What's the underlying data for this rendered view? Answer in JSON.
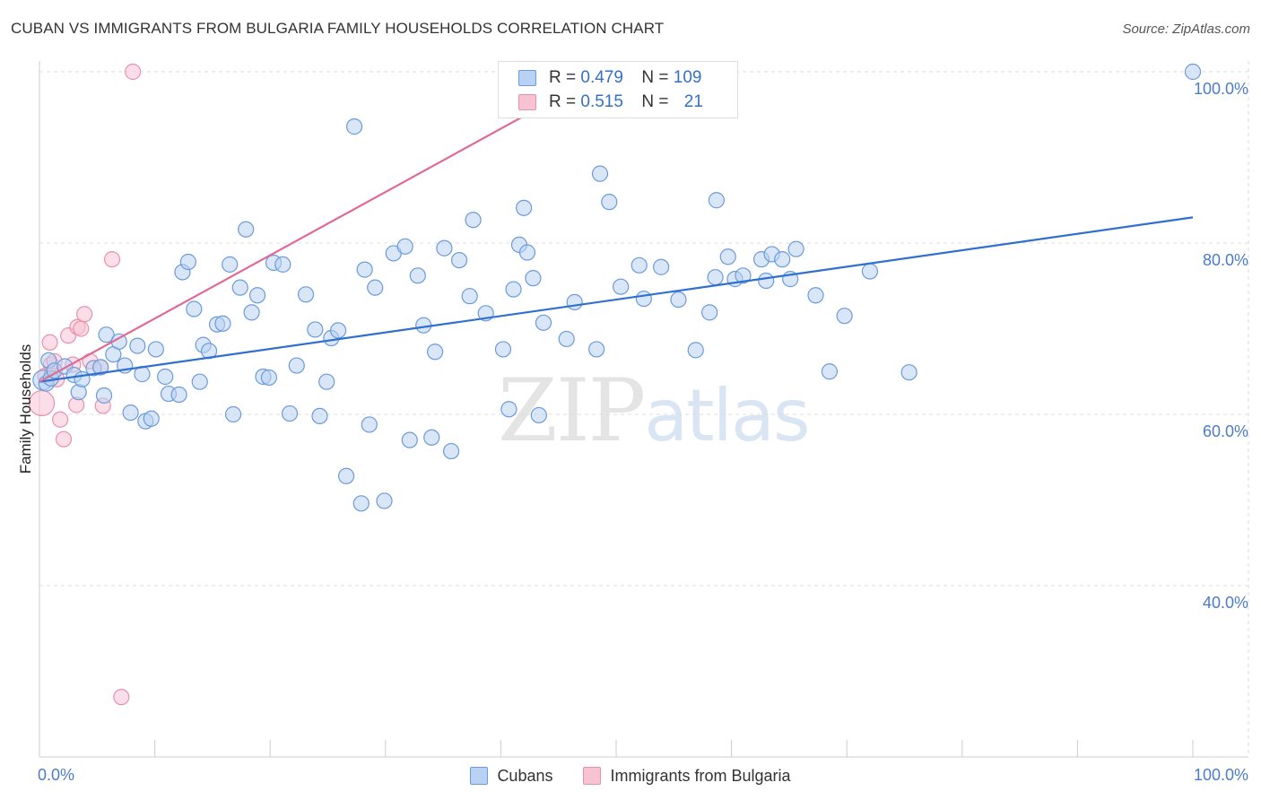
{
  "title": "CUBAN VS IMMIGRANTS FROM BULGARIA FAMILY HOUSEHOLDS CORRELATION CHART",
  "source": "Source: ZipAtlas.com",
  "watermark": {
    "zip": "ZIP",
    "atlas": "atlas"
  },
  "legend": {
    "r_label": "R =",
    "n_label": "N =",
    "rows": [
      {
        "r": "0.479",
        "n": "109"
      },
      {
        "r": "0.515",
        "n": "21"
      }
    ]
  },
  "colors": {
    "cuban_fill": "#b9d1f3",
    "cuban_stroke": "#6b9bd9",
    "cuban_line": "#2f6fd0",
    "bulgaria_fill": "#f7c3d3",
    "bulgaria_stroke": "#e891ad",
    "bulgaria_line": "#e06a94",
    "grid": "#dcdcdc",
    "axis": "#cccccc"
  },
  "chart_data": {
    "type": "scatter",
    "title": "CUBAN VS IMMIGRANTS FROM BULGARIA FAMILY HOUSEHOLDS CORRELATION CHART",
    "xlabel": "",
    "ylabel": "Family Households",
    "xlim": [
      0,
      100
    ],
    "ylim": [
      20,
      102
    ],
    "x_tick_labels": [
      "0.0%",
      "100.0%"
    ],
    "y_ticks": [
      40,
      60,
      80,
      100
    ],
    "y_tick_labels": [
      "40.0%",
      "60.0%",
      "80.0%",
      "100.0%"
    ],
    "legend": [
      "Cubans",
      "Immigrants from Bulgaria"
    ],
    "series": [
      {
        "name": "Cubans",
        "trend": {
          "x0": 0,
          "y0": 63.8,
          "x1": 100,
          "y1": 83.0
        },
        "points": [
          [
            0.3,
            64.0
          ],
          [
            0.6,
            63.6
          ],
          [
            0.8,
            66.3
          ],
          [
            1.0,
            64.2
          ],
          [
            1.3,
            65.1
          ],
          [
            2.2,
            65.6
          ],
          [
            3.0,
            64.6
          ],
          [
            3.4,
            62.6
          ],
          [
            3.7,
            64.1
          ],
          [
            4.7,
            65.4
          ],
          [
            5.3,
            65.5
          ],
          [
            5.6,
            62.2
          ],
          [
            5.8,
            69.3
          ],
          [
            6.4,
            67.0
          ],
          [
            6.9,
            68.5
          ],
          [
            7.4,
            65.7
          ],
          [
            7.9,
            60.2
          ],
          [
            8.5,
            68.0
          ],
          [
            8.9,
            64.7
          ],
          [
            9.2,
            59.2
          ],
          [
            9.7,
            59.5
          ],
          [
            10.1,
            67.6
          ],
          [
            10.9,
            64.4
          ],
          [
            11.2,
            62.4
          ],
          [
            12.1,
            62.3
          ],
          [
            12.4,
            76.6
          ],
          [
            12.9,
            77.8
          ],
          [
            13.4,
            72.3
          ],
          [
            13.9,
            63.8
          ],
          [
            14.2,
            68.1
          ],
          [
            14.7,
            67.4
          ],
          [
            15.4,
            70.5
          ],
          [
            15.9,
            70.6
          ],
          [
            16.5,
            77.5
          ],
          [
            16.8,
            60.0
          ],
          [
            17.4,
            74.8
          ],
          [
            17.9,
            81.6
          ],
          [
            18.4,
            71.9
          ],
          [
            18.9,
            73.9
          ],
          [
            19.4,
            64.4
          ],
          [
            19.9,
            64.3
          ],
          [
            20.3,
            77.7
          ],
          [
            21.1,
            77.5
          ],
          [
            21.7,
            60.1
          ],
          [
            22.3,
            65.7
          ],
          [
            23.1,
            74.0
          ],
          [
            23.9,
            69.9
          ],
          [
            24.3,
            59.8
          ],
          [
            24.9,
            63.8
          ],
          [
            25.3,
            68.9
          ],
          [
            25.9,
            69.8
          ],
          [
            26.6,
            52.8
          ],
          [
            27.3,
            93.6
          ],
          [
            27.9,
            49.6
          ],
          [
            28.2,
            76.9
          ],
          [
            28.6,
            58.8
          ],
          [
            29.1,
            74.8
          ],
          [
            29.9,
            49.9
          ],
          [
            30.7,
            78.8
          ],
          [
            31.7,
            79.6
          ],
          [
            32.1,
            57.0
          ],
          [
            32.8,
            76.2
          ],
          [
            33.3,
            70.4
          ],
          [
            34.0,
            57.3
          ],
          [
            34.3,
            67.3
          ],
          [
            35.1,
            79.4
          ],
          [
            35.7,
            55.7
          ],
          [
            36.4,
            78.0
          ],
          [
            37.3,
            73.8
          ],
          [
            37.6,
            82.7
          ],
          [
            38.7,
            71.8
          ],
          [
            40.2,
            67.6
          ],
          [
            40.7,
            60.6
          ],
          [
            41.1,
            74.6
          ],
          [
            41.6,
            79.8
          ],
          [
            42.0,
            84.1
          ],
          [
            42.3,
            78.9
          ],
          [
            42.8,
            75.9
          ],
          [
            43.3,
            59.9
          ],
          [
            43.7,
            70.7
          ],
          [
            45.7,
            68.8
          ],
          [
            46.4,
            73.1
          ],
          [
            48.3,
            67.6
          ],
          [
            48.6,
            88.1
          ],
          [
            49.4,
            84.8
          ],
          [
            50.4,
            74.9
          ],
          [
            52.0,
            77.4
          ],
          [
            52.4,
            73.5
          ],
          [
            53.9,
            77.2
          ],
          [
            55.4,
            73.4
          ],
          [
            56.9,
            67.5
          ],
          [
            58.1,
            71.9
          ],
          [
            58.6,
            76.0
          ],
          [
            58.7,
            85.0
          ],
          [
            59.7,
            78.4
          ],
          [
            60.3,
            75.8
          ],
          [
            61.0,
            76.2
          ],
          [
            62.6,
            78.1
          ],
          [
            63.0,
            75.6
          ],
          [
            63.5,
            78.7
          ],
          [
            64.4,
            78.1
          ],
          [
            65.1,
            75.8
          ],
          [
            65.6,
            79.3
          ],
          [
            67.3,
            73.9
          ],
          [
            68.5,
            65.0
          ],
          [
            69.8,
            71.5
          ],
          [
            72.0,
            76.7
          ],
          [
            75.4,
            64.9
          ],
          [
            100.0,
            100.0
          ]
        ]
      },
      {
        "name": "Immigrants from Bulgaria",
        "trend": {
          "x0": 0,
          "y0": 63.8,
          "x1": 49.0,
          "y1": 100.0
        },
        "points": [
          [
            0.2,
            61.3
          ],
          [
            0.5,
            64.5
          ],
          [
            0.9,
            68.4
          ],
          [
            1.0,
            65.8
          ],
          [
            1.1,
            64.9
          ],
          [
            1.3,
            66.2
          ],
          [
            1.5,
            64.1
          ],
          [
            1.8,
            59.4
          ],
          [
            2.1,
            57.1
          ],
          [
            2.5,
            69.2
          ],
          [
            2.9,
            65.8
          ],
          [
            3.2,
            61.1
          ],
          [
            3.3,
            70.2
          ],
          [
            3.6,
            70.0
          ],
          [
            3.9,
            71.7
          ],
          [
            4.4,
            66.2
          ],
          [
            5.3,
            65.5
          ],
          [
            5.5,
            61.0
          ],
          [
            6.3,
            78.1
          ],
          [
            7.1,
            27.0
          ],
          [
            8.1,
            100.0
          ]
        ]
      }
    ]
  }
}
